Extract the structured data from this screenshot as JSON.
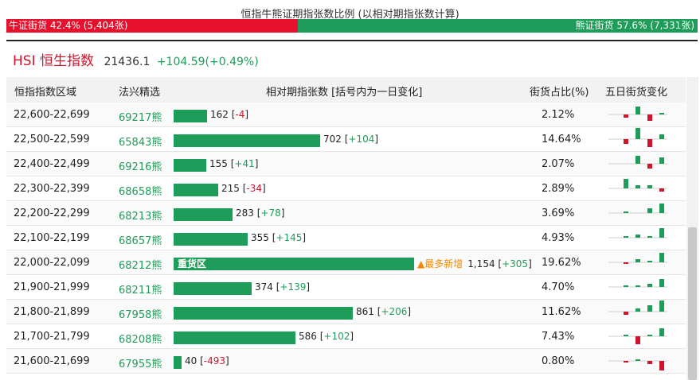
{
  "caption": "恒指牛熊证期指张数比例 (以相对期指张数计算)",
  "ratio": {
    "bull_label": "牛证街货 42.4% (5,404张)",
    "bear_label": "熊证街货 57.6% (7,331张)",
    "bull_fraction": 0.424,
    "bull_color": "#e8112d",
    "bear_color": "#1e9c59"
  },
  "index": {
    "name": "HSI 恒生指数",
    "value": "21436.1",
    "change": "+104.59(+0.49%)"
  },
  "header": {
    "col_range": "恒指指数区域",
    "col_pick": "法兴精选",
    "col_count": "相对期指张数 [括号内为一日变化]",
    "col_share": "街货占比(%)",
    "col_trend": "五日街货变化"
  },
  "rows": [
    {
      "range": "22,600-22,699",
      "code": "69217熊",
      "count": 162,
      "count_text": "162",
      "delta": "-4",
      "share": "2.12%",
      "heavy": "",
      "most": "",
      "trend": [
        0,
        -2,
        5,
        -4,
        1
      ]
    },
    {
      "range": "22,500-22,599",
      "code": "65843熊",
      "count": 702,
      "count_text": "702",
      "delta": "+104",
      "share": "14.64%",
      "heavy": "",
      "most": "",
      "trend": [
        0,
        -3,
        7,
        -5,
        3
      ]
    },
    {
      "range": "22,400-22,499",
      "code": "69216熊",
      "count": 155,
      "count_text": "155",
      "delta": "+41",
      "share": "2.07%",
      "heavy": "",
      "most": "",
      "trend": [
        0,
        0,
        5,
        -3,
        4
      ]
    },
    {
      "range": "22,300-22,399",
      "code": "68658熊",
      "count": 215,
      "count_text": "215",
      "delta": "-34",
      "share": "2.89%",
      "heavy": "",
      "most": "",
      "trend": [
        0,
        6,
        2,
        2,
        -2
      ]
    },
    {
      "range": "22,200-22,299",
      "code": "68213熊",
      "count": 283,
      "count_text": "283",
      "delta": "+78",
      "share": "3.69%",
      "heavy": "",
      "most": "",
      "trend": [
        0,
        1,
        0,
        3,
        6
      ]
    },
    {
      "range": "22,100-22,199",
      "code": "68657熊",
      "count": 355,
      "count_text": "355",
      "delta": "+145",
      "share": "4.93%",
      "heavy": "",
      "most": "",
      "trend": [
        0,
        1,
        2,
        1,
        6
      ]
    },
    {
      "range": "22,000-22,099",
      "code": "68212熊",
      "count": 1154,
      "count_text": "1,154",
      "delta": "+305",
      "share": "19.62%",
      "heavy": "重货区",
      "most": "▲最多新增",
      "trend": [
        0,
        -1,
        2,
        1,
        6
      ]
    },
    {
      "range": "21,900-21,999",
      "code": "68211熊",
      "count": 374,
      "count_text": "374",
      "delta": "+139",
      "share": "4.70%",
      "heavy": "",
      "most": "",
      "trend": [
        0,
        1,
        1,
        2,
        5
      ]
    },
    {
      "range": "21,800-21,899",
      "code": "67958熊",
      "count": 861,
      "count_text": "861",
      "delta": "+206",
      "share": "11.62%",
      "heavy": "",
      "most": "",
      "trend": [
        0,
        -2,
        2,
        4,
        7
      ]
    },
    {
      "range": "21,700-21,799",
      "code": "68208熊",
      "count": 586,
      "count_text": "586",
      "delta": "+102",
      "share": "7.43%",
      "heavy": "",
      "most": "",
      "trend": [
        0,
        1,
        -5,
        1,
        5
      ]
    },
    {
      "range": "21,600-21,699",
      "code": "67955熊",
      "count": 40,
      "count_text": "40",
      "delta": "-493",
      "share": "0.80%",
      "heavy": "",
      "most": "",
      "trend": [
        0,
        -1,
        1,
        -2,
        -6
      ]
    }
  ]
}
